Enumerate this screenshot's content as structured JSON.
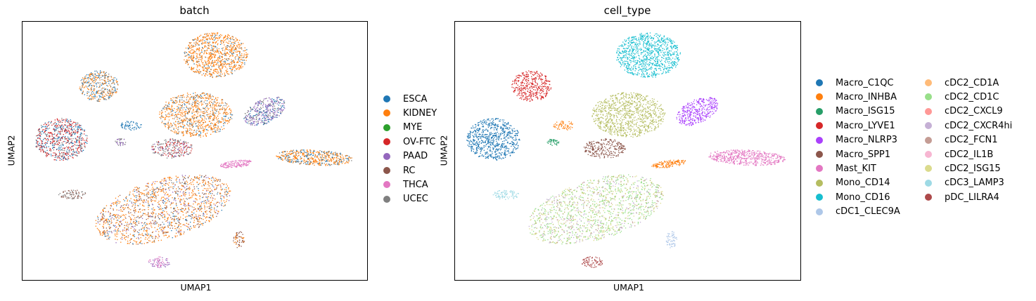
{
  "chart_data": [
    {
      "type": "scatter",
      "title": "batch",
      "xlabel": "UMAP1",
      "ylabel": "UMAP2",
      "grid": false,
      "legend_position": "right",
      "series": [
        {
          "name": "ESCA",
          "color": "#1f77b4"
        },
        {
          "name": "KIDNEY",
          "color": "#ff7f0e"
        },
        {
          "name": "MYE",
          "color": "#2ca02c"
        },
        {
          "name": "OV-FTC",
          "color": "#d62728"
        },
        {
          "name": "PAAD",
          "color": "#9467bd"
        },
        {
          "name": "RC",
          "color": "#8c564b"
        },
        {
          "name": "THCA",
          "color": "#e377c2"
        },
        {
          "name": "UCEC",
          "color": "#7f7f7f"
        }
      ]
    },
    {
      "type": "scatter",
      "title": "cell_type",
      "xlabel": "UMAP1",
      "ylabel": "UMAP2",
      "grid": false,
      "legend_position": "right",
      "series": [
        {
          "name": "Macro_C1QC",
          "color": "#1f77b4"
        },
        {
          "name": "Macro_INHBA",
          "color": "#ff7f0e"
        },
        {
          "name": "Macro_ISG15",
          "color": "#279e68"
        },
        {
          "name": "Macro_LYVE1",
          "color": "#d62728"
        },
        {
          "name": "Macro_NLRP3",
          "color": "#aa40fc"
        },
        {
          "name": "Macro_SPP1",
          "color": "#8c564b"
        },
        {
          "name": "Mast_KIT",
          "color": "#e377c2"
        },
        {
          "name": "Mono_CD14",
          "color": "#b5bd61"
        },
        {
          "name": "Mono_CD16",
          "color": "#17becf"
        },
        {
          "name": "cDC1_CLEC9A",
          "color": "#aec7e8"
        },
        {
          "name": "cDC2_CD1A",
          "color": "#ffbb78"
        },
        {
          "name": "cDC2_CD1C",
          "color": "#98df8a"
        },
        {
          "name": "cDC2_CXCL9",
          "color": "#ff9896"
        },
        {
          "name": "cDC2_CXCR4hi",
          "color": "#c5b0d5"
        },
        {
          "name": "cDC2_FCN1",
          "color": "#c49c94"
        },
        {
          "name": "cDC2_IL1B",
          "color": "#f7b6d2"
        },
        {
          "name": "cDC2_ISG15",
          "color": "#dbdb8d"
        },
        {
          "name": "cDC3_LAMP3",
          "color": "#9edae5"
        },
        {
          "name": "pDC_LILRA4",
          "color": "#ad494a"
        }
      ]
    }
  ]
}
